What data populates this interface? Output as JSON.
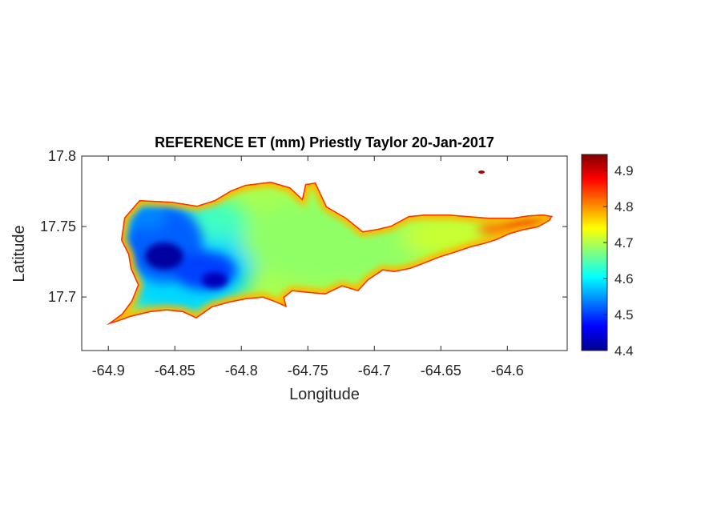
{
  "figure": {
    "title": "REFERENCE ET (mm) Priestly Taylor 20-Jan-2017",
    "xlabel": "Longitude",
    "ylabel": "Latitude"
  },
  "chart_data": {
    "type": "heatmap",
    "title": "REFERENCE ET (mm) Priestly Taylor 20-Jan-2017",
    "xlabel": "Longitude",
    "ylabel": "Latitude",
    "xlim": [
      -64.92,
      -64.555
    ],
    "ylim": [
      17.662,
      17.8
    ],
    "x_ticks": [
      -64.9,
      -64.85,
      -64.8,
      -64.75,
      -64.7,
      -64.65,
      -64.6
    ],
    "x_tick_labels": [
      "-64.9",
      "-64.85",
      "-64.8",
      "-64.75",
      "-64.7",
      "-64.65",
      "-64.6"
    ],
    "y_ticks": [
      17.7,
      17.75,
      17.8
    ],
    "y_tick_labels": [
      "17.7",
      "17.75",
      "17.8"
    ],
    "grid": false,
    "colorbar": {
      "colormap": "jet",
      "min": 4.4,
      "max": 4.945,
      "ticks": [
        4.4,
        4.5,
        4.6,
        4.7,
        4.8,
        4.9
      ],
      "tick_labels": [
        "4.4",
        "4.5",
        "4.6",
        "4.7",
        "4.8",
        "4.9"
      ]
    },
    "approx_values": {
      "western_low_core": 4.42,
      "island_interior": 4.65,
      "southern_and_northern_coast": 4.85,
      "eastern_tip": 4.92
    }
  }
}
